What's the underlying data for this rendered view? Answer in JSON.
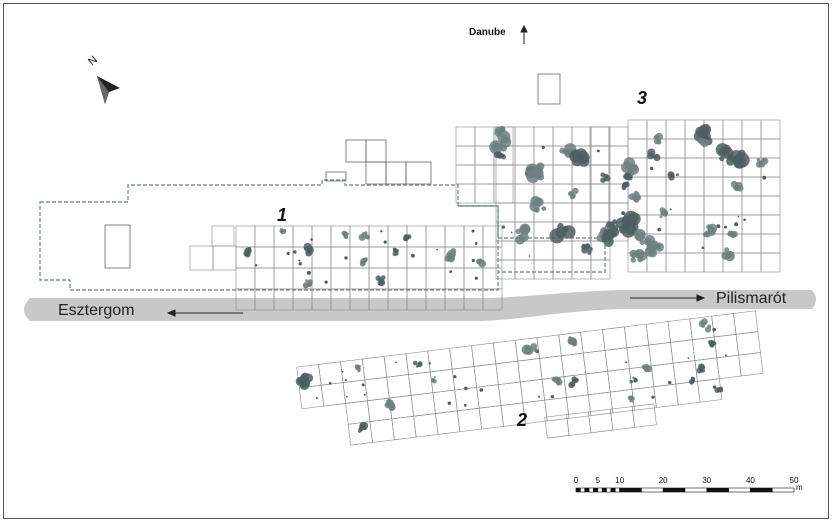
{
  "north": {
    "label": "N"
  },
  "danube": {
    "label": "Danube"
  },
  "areas": [
    {
      "label": "1"
    },
    {
      "label": "2"
    },
    {
      "label": "3"
    }
  ],
  "road": {
    "west_label": "Esztergom",
    "east_label": "Pilismarót"
  },
  "scale": {
    "ticks": [
      "0",
      "5",
      "10",
      "20",
      "30",
      "40",
      "50"
    ],
    "unit": "m"
  },
  "colors": {
    "road": "#c8c8c8",
    "feature": "#6e7f7f",
    "feature_dark": "#4e5e60",
    "grid": "#8a8a8a",
    "boundary": "#7f9494"
  }
}
